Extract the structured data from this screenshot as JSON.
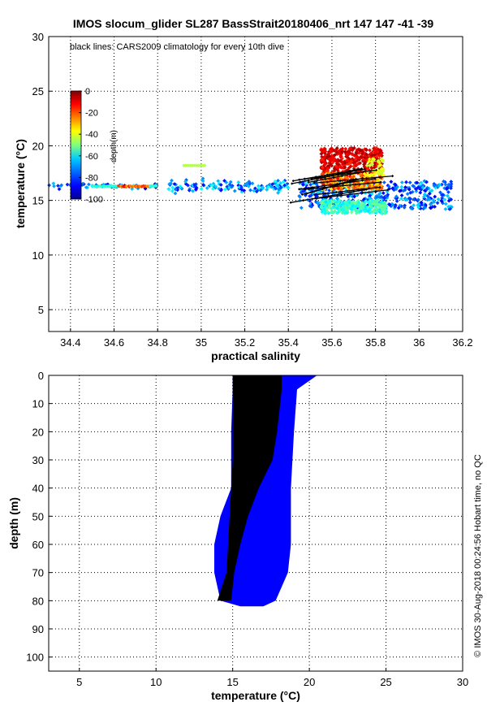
{
  "title": "IMOS slocum_glider SL287 BassStrait20180406_nrt 147  147  -41  -39",
  "credit": "© IMOS 30-Aug-2018 00:24:56 Hobart time, no QC",
  "colors": {
    "black_lines": "#000000",
    "depth_marker": "#0000ff"
  },
  "chart_data": [
    {
      "type": "scatter",
      "title": "",
      "annotation": "black lines: CARS2009 climatology for every 10th dive",
      "xlabel": "practical salinity",
      "ylabel": "temperature (°C)",
      "xlim": [
        34.3,
        36.2
      ],
      "ylim": [
        3,
        30
      ],
      "xticks": [
        "34.4",
        "34.6",
        "34.8",
        "35",
        "35.2",
        "35.4",
        "35.6",
        "35.8",
        "36",
        "36.2"
      ],
      "yticks": [
        "5",
        "10",
        "15",
        "20",
        "25",
        "30"
      ],
      "grid": true,
      "colorbar": {
        "label": "depth(m)",
        "range": [
          -100,
          0
        ],
        "ticks": [
          "0",
          "-20",
          "-40",
          "-60",
          "-80",
          "-100"
        ],
        "colormap": "jet",
        "placement": "top-left"
      },
      "series": [
        {
          "points_sample": [
            {
              "x": 34.35,
              "y": 16.5,
              "depth": -80
            },
            {
              "x": 34.45,
              "y": 16.4,
              "depth": -75
            },
            {
              "x": 34.55,
              "y": 16.3,
              "depth": -70
            },
            {
              "x": 34.7,
              "y": 16.3,
              "depth": -15
            },
            {
              "x": 34.8,
              "y": 15.8,
              "depth": -5
            },
            {
              "x": 34.95,
              "y": 18.2,
              "depth": -45
            },
            {
              "x": 35.0,
              "y": 16.5,
              "depth": -75
            },
            {
              "x": 35.2,
              "y": 15.8,
              "depth": -70
            },
            {
              "x": 35.45,
              "y": 14.8,
              "depth": -85
            },
            {
              "x": 35.55,
              "y": 16.5,
              "depth": -60
            },
            {
              "x": 35.62,
              "y": 18.5,
              "depth": -5
            },
            {
              "x": 35.65,
              "y": 20.1,
              "depth": -3
            },
            {
              "x": 35.7,
              "y": 17.0,
              "depth": -10
            },
            {
              "x": 35.75,
              "y": 14.5,
              "depth": -75
            },
            {
              "x": 35.8,
              "y": 14.0,
              "depth": -55
            },
            {
              "x": 35.9,
              "y": 15.5,
              "depth": -80
            },
            {
              "x": 36.0,
              "y": 16.0,
              "depth": -85
            },
            {
              "x": 36.15,
              "y": 15.0,
              "depth": -85
            }
          ]
        }
      ]
    },
    {
      "type": "scatter",
      "title": "",
      "xlabel": "temperature (°C)",
      "ylabel": "depth (m)",
      "xlim": [
        3,
        30
      ],
      "ylim": [
        105,
        0
      ],
      "xticks": [
        "5",
        "10",
        "15",
        "20",
        "25",
        "30"
      ],
      "yticks": [
        "0",
        "10",
        "20",
        "30",
        "40",
        "50",
        "60",
        "70",
        "80",
        "90",
        "100"
      ],
      "grid": true,
      "series": [
        {
          "envelope": [
            {
              "depth": 0,
              "tmin": 15.0,
              "tmax": 20.5
            },
            {
              "depth": 5,
              "tmin": 15.0,
              "tmax": 19.2
            },
            {
              "depth": 20,
              "tmin": 14.9,
              "tmax": 19.0
            },
            {
              "depth": 40,
              "tmin": 14.9,
              "tmax": 18.8
            },
            {
              "depth": 50,
              "tmin": 14.2,
              "tmax": 18.8
            },
            {
              "depth": 60,
              "tmin": 13.8,
              "tmax": 18.8
            },
            {
              "depth": 70,
              "tmin": 13.8,
              "tmax": 18.6
            },
            {
              "depth": 80,
              "tmin": 14.2,
              "tmax": 17.8
            },
            {
              "depth": 82,
              "tmin": 15.5,
              "tmax": 17.0
            }
          ]
        },
        {
          "envelope": [
            {
              "depth": 0,
              "tmin": 15.0,
              "tmax": 18.2
            },
            {
              "depth": 5,
              "tmin": 15.0,
              "tmax": 18.2
            },
            {
              "depth": 20,
              "tmin": 15.0,
              "tmax": 17.9
            },
            {
              "depth": 30,
              "tmin": 15.0,
              "tmax": 17.6
            },
            {
              "depth": 40,
              "tmin": 14.9,
              "tmax": 16.7
            },
            {
              "depth": 50,
              "tmin": 14.8,
              "tmax": 16.0
            },
            {
              "depth": 60,
              "tmin": 14.7,
              "tmax": 15.5
            },
            {
              "depth": 70,
              "tmin": 14.6,
              "tmax": 15.1
            },
            {
              "depth": 80,
              "tmin": 14.0,
              "tmax": 14.9
            }
          ]
        }
      ]
    }
  ]
}
